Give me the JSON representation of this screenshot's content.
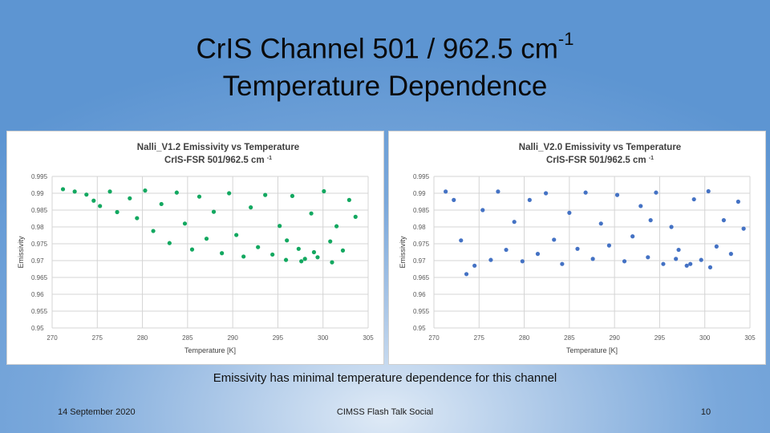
{
  "slide": {
    "title_line1": "CrIS Channel 501 / 962.5 cm",
    "title_sup": "-1",
    "title_line2": "Temperature Dependence",
    "caption": "Emissivity has minimal temperature dependence for this channel",
    "footer_date": "14 September 2020",
    "footer_center": "CIMSS Flash Talk Social",
    "footer_page": "10"
  },
  "chart_data": [
    {
      "type": "scatter",
      "title": "Nalli_V1.2 Emissivity vs Temperature",
      "subtitle": "CrIS-FSR 501/962.5 cm",
      "subtitle_sup": "-1",
      "xlabel": "Temperature [K]",
      "ylabel": "Emissivity",
      "xlim": [
        270,
        305
      ],
      "ylim": [
        0.95,
        0.995
      ],
      "xticks": [
        "270",
        "275",
        "280",
        "285",
        "290",
        "295",
        "300",
        "305"
      ],
      "yticks": [
        "0.95",
        "0.955",
        "0.96",
        "0.965",
        "0.97",
        "0.975",
        "0.98",
        "0.985",
        "0.99",
        "0.995"
      ],
      "grid": true,
      "color": "#13a860",
      "series": [
        {
          "points": [
            [
              271.2,
              0.9912
            ],
            [
              272.5,
              0.9905
            ],
            [
              273.8,
              0.9896
            ],
            [
              274.6,
              0.9878
            ],
            [
              275.3,
              0.9862
            ],
            [
              276.4,
              0.9905
            ],
            [
              277.2,
              0.9844
            ],
            [
              278.6,
              0.9885
            ],
            [
              279.4,
              0.9826
            ],
            [
              280.3,
              0.9908
            ],
            [
              281.2,
              0.9788
            ],
            [
              282.1,
              0.9868
            ],
            [
              283.0,
              0.9752
            ],
            [
              283.8,
              0.9902
            ],
            [
              284.7,
              0.981
            ],
            [
              285.5,
              0.9733
            ],
            [
              286.3,
              0.989
            ],
            [
              287.1,
              0.9765
            ],
            [
              287.9,
              0.9845
            ],
            [
              288.8,
              0.9722
            ],
            [
              289.6,
              0.99
            ],
            [
              290.4,
              0.9776
            ],
            [
              291.2,
              0.9712
            ],
            [
              292.0,
              0.9858
            ],
            [
              292.8,
              0.974
            ],
            [
              293.6,
              0.9895
            ],
            [
              294.4,
              0.9718
            ],
            [
              295.2,
              0.9803
            ],
            [
              295.9,
              0.9702
            ],
            [
              296.6,
              0.9892
            ],
            [
              297.3,
              0.9735
            ],
            [
              298.0,
              0.9705
            ],
            [
              298.7,
              0.984
            ],
            [
              299.4,
              0.971
            ],
            [
              300.1,
              0.9906
            ],
            [
              300.8,
              0.9757
            ],
            [
              301.5,
              0.9802
            ],
            [
              302.2,
              0.973
            ],
            [
              302.9,
              0.988
            ],
            [
              303.6,
              0.983
            ],
            [
              301.0,
              0.9695
            ],
            [
              299.0,
              0.9725
            ],
            [
              297.6,
              0.9698
            ],
            [
              296.0,
              0.976
            ]
          ]
        }
      ]
    },
    {
      "type": "scatter",
      "title": "Nalli_V2.0 Emissivity vs Temperature",
      "subtitle": "CrIS-FSR 501/962.5 cm",
      "subtitle_sup": "-1",
      "xlabel": "Temperature [K]",
      "ylabel": "Emissivity",
      "xlim": [
        270,
        305
      ],
      "ylim": [
        0.95,
        0.995
      ],
      "xticks": [
        "270",
        "275",
        "280",
        "285",
        "290",
        "295",
        "300",
        "305"
      ],
      "yticks": [
        "0.95",
        "0.955",
        "0.96",
        "0.965",
        "0.97",
        "0.975",
        "0.98",
        "0.985",
        "0.99",
        "0.995"
      ],
      "grid": true,
      "color": "#4472c4",
      "series": [
        {
          "points": [
            [
              271.3,
              0.9905
            ],
            [
              272.2,
              0.988
            ],
            [
              273.0,
              0.976
            ],
            [
              273.6,
              0.966
            ],
            [
              274.5,
              0.9685
            ],
            [
              275.4,
              0.985
            ],
            [
              276.3,
              0.9702
            ],
            [
              277.1,
              0.9905
            ],
            [
              278.0,
              0.9732
            ],
            [
              278.9,
              0.9815
            ],
            [
              279.8,
              0.9698
            ],
            [
              280.6,
              0.988
            ],
            [
              281.5,
              0.972
            ],
            [
              282.4,
              0.99
            ],
            [
              283.3,
              0.9762
            ],
            [
              284.2,
              0.969
            ],
            [
              285.0,
              0.9842
            ],
            [
              285.9,
              0.9735
            ],
            [
              286.8,
              0.9902
            ],
            [
              287.6,
              0.9705
            ],
            [
              288.5,
              0.981
            ],
            [
              289.4,
              0.9745
            ],
            [
              290.3,
              0.9895
            ],
            [
              291.1,
              0.9698
            ],
            [
              292.0,
              0.9772
            ],
            [
              292.9,
              0.9862
            ],
            [
              293.7,
              0.971
            ],
            [
              294.6,
              0.9902
            ],
            [
              295.4,
              0.969
            ],
            [
              296.3,
              0.98
            ],
            [
              297.1,
              0.9732
            ],
            [
              298.0,
              0.9685
            ],
            [
              298.8,
              0.9882
            ],
            [
              299.6,
              0.9702
            ],
            [
              300.4,
              0.9906
            ],
            [
              301.3,
              0.9742
            ],
            [
              302.1,
              0.982
            ],
            [
              302.9,
              0.972
            ],
            [
              303.7,
              0.9875
            ],
            [
              304.3,
              0.9795
            ],
            [
              300.6,
              0.968
            ],
            [
              298.4,
              0.969
            ],
            [
              296.8,
              0.9705
            ],
            [
              294.0,
              0.982
            ]
          ]
        }
      ]
    }
  ]
}
